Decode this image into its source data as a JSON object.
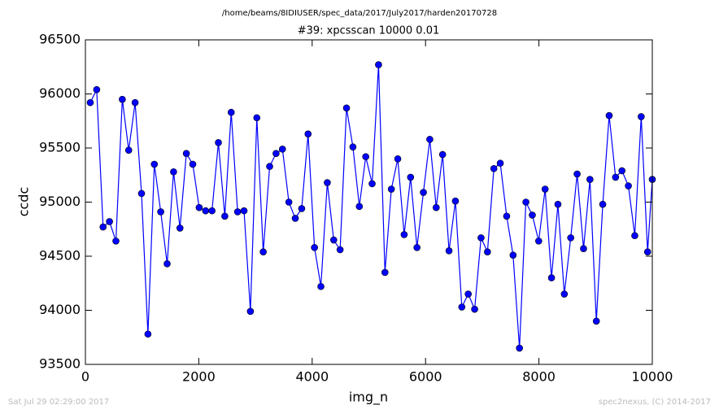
{
  "chart_data": {
    "type": "line",
    "title": "/home/beams/8IDIUSER/spec_data/2017/July2017/harden20170728",
    "subtitle": "#39: xpcsscan 10000 0.01",
    "x_label": "img_n",
    "y_label": "ccdc",
    "footer_left": "Sat Jul 29 02:29:00 2017",
    "footer_right": "spec2nexus, (C) 2014-2017",
    "xlim": [
      0,
      10000
    ],
    "xticks": [
      0,
      2000,
      4000,
      6000,
      8000,
      10000
    ],
    "ylim": [
      93500,
      96500
    ],
    "yticks": [
      93500,
      94000,
      94500,
      95000,
      95500,
      96000,
      96500
    ],
    "grid": false,
    "series": [
      {
        "color": "#0000ff",
        "x": [
          86,
          199,
          312,
          425,
          538,
          651,
          764,
          877,
          990,
          1103,
          1216,
          1329,
          1442,
          1555,
          1668,
          1781,
          1894,
          2007,
          2120,
          2233,
          2346,
          2459,
          2572,
          2685,
          2798,
          2911,
          3024,
          3137,
          3250,
          3363,
          3476,
          3589,
          3702,
          3815,
          3928,
          4041,
          4154,
          4267,
          4380,
          4493,
          4606,
          4719,
          4832,
          4945,
          5058,
          5171,
          5284,
          5397,
          5510,
          5623,
          5736,
          5849,
          5962,
          6075,
          6188,
          6301,
          6414,
          6527,
          6640,
          6753,
          6866,
          6979,
          7092,
          7205,
          7318,
          7431,
          7544,
          7657,
          7770,
          7883,
          7996,
          8109,
          8222,
          8335,
          8448,
          8561,
          8674,
          8787,
          8900,
          9013,
          9126,
          9239,
          9352,
          9465,
          9578,
          9691,
          9804,
          9917,
          10000
        ],
        "values": [
          95920,
          96040,
          94770,
          94820,
          94640,
          95950,
          95480,
          95920,
          95080,
          93780,
          95350,
          94910,
          94430,
          95280,
          94760,
          95450,
          95350,
          94950,
          94920,
          94920,
          95550,
          94870,
          95830,
          94910,
          94920,
          93990,
          95780,
          94540,
          95330,
          95450,
          95490,
          95000,
          94850,
          94940,
          95630,
          94580,
          94220,
          95180,
          94650,
          94560,
          95870,
          95510,
          94960,
          95420,
          95170,
          96270,
          94350,
          95120,
          95400,
          94700,
          95230,
          94580,
          95090,
          95580,
          94950,
          95440,
          94550,
          95010,
          94030,
          94150,
          94010,
          94670,
          94540,
          95310,
          95360,
          94870,
          94510,
          93650,
          95000,
          94880,
          94640,
          95120,
          94300,
          94980,
          94150,
          94670,
          95260,
          94570,
          95210,
          93900,
          94980,
          95800,
          95230,
          95290,
          95150,
          94690,
          95790,
          94540,
          95210
        ]
      }
    ]
  }
}
